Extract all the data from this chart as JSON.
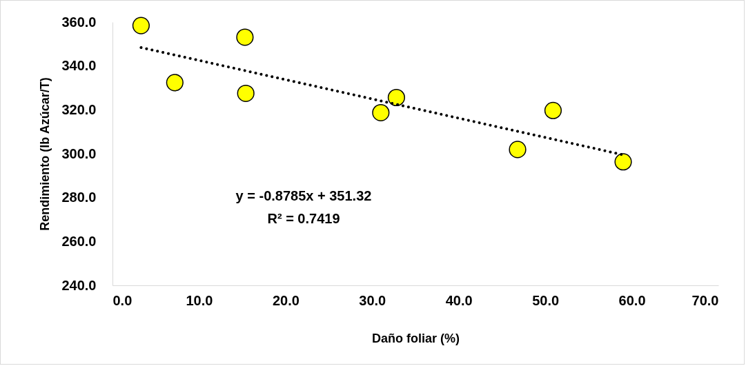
{
  "chart_data": {
    "type": "scatter",
    "xlabel": "Daño foliar (%)",
    "ylabel": "Rendimiento (lb Azúcar/T)",
    "xlim": [
      0,
      70
    ],
    "ylim": [
      240,
      360
    ],
    "xticks": [
      {
        "value": 0,
        "label": "0.0"
      },
      {
        "value": 10,
        "label": "10.0"
      },
      {
        "value": 20,
        "label": "20.0"
      },
      {
        "value": 30,
        "label": "30.0"
      },
      {
        "value": 40,
        "label": "40.0"
      },
      {
        "value": 50,
        "label": "50.0"
      },
      {
        "value": 60,
        "label": "60.0"
      },
      {
        "value": 70,
        "label": "70.0"
      }
    ],
    "yticks": [
      {
        "value": 240,
        "label": "240.0"
      },
      {
        "value": 260,
        "label": "260.0"
      },
      {
        "value": 280,
        "label": "280.0"
      },
      {
        "value": 300,
        "label": "300.0"
      },
      {
        "value": 320,
        "label": "320.0"
      },
      {
        "value": 340,
        "label": "340.0"
      },
      {
        "value": 360,
        "label": "360.0"
      }
    ],
    "series": [
      {
        "marker": "circle",
        "color": "#ffff00",
        "x": [
          3.3,
          7.2,
          15.3,
          15.4,
          31.0,
          32.8,
          46.8,
          50.9,
          59.0
        ],
        "values": [
          358.4,
          332.4,
          353.1,
          327.5,
          318.7,
          325.6,
          301.9,
          319.7,
          296.3
        ]
      },
      {
        "type": "line",
        "color": "#000000",
        "line_style": "dotted",
        "x": [
          3.3,
          59.0
        ],
        "values": [
          348.4,
          299.5
        ]
      }
    ],
    "annotations": [
      "y = -0.8785x + 351.32",
      "R² = 0.7419"
    ]
  }
}
